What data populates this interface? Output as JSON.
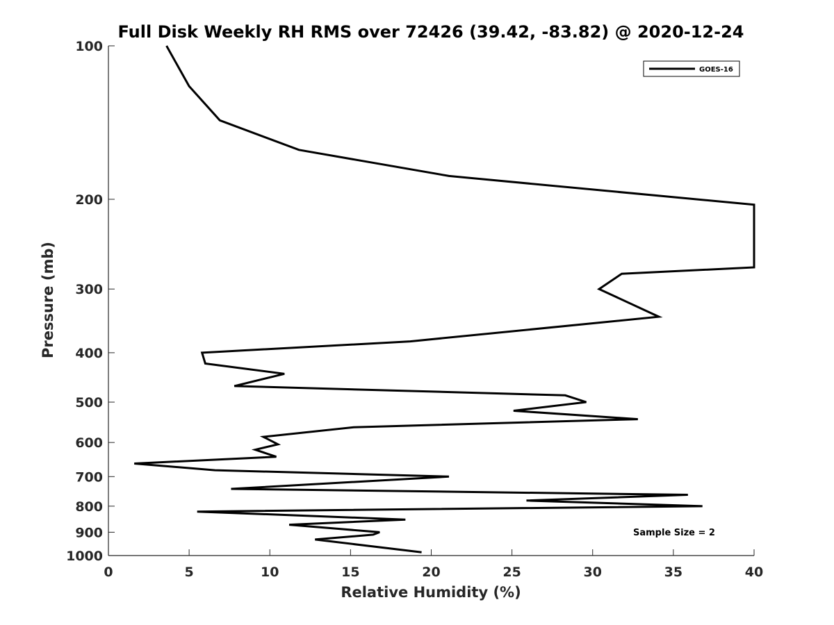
{
  "chart_data": {
    "type": "line",
    "title": "Full Disk Weekly RH RMS over 72426 (39.42, -83.82) @ 2020-12-24",
    "xlabel": "Relative Humidity (%)",
    "ylabel": "Pressure (mb)",
    "xlim": [
      0,
      40
    ],
    "ylim": [
      100,
      1000
    ],
    "y_scale": "log",
    "y_reversed": true,
    "x_ticks": [
      "0",
      "5",
      "10",
      "15",
      "20",
      "25",
      "30",
      "35",
      "40"
    ],
    "y_ticks": [
      "100",
      "200",
      "300",
      "400",
      "500",
      "600",
      "700",
      "800",
      "900",
      "1000"
    ],
    "grid": false,
    "legend_position": "top-right",
    "series": [
      {
        "name": "GOES-16",
        "color": "#000000",
        "points": [
          [
            3.6,
            100
          ],
          [
            5.0,
            120
          ],
          [
            6.9,
            140
          ],
          [
            11.8,
            160
          ],
          [
            21.1,
            180
          ],
          [
            40.0,
            205
          ],
          [
            40.0,
            272
          ],
          [
            31.8,
            280
          ],
          [
            30.4,
            300
          ],
          [
            34.1,
            340
          ],
          [
            18.7,
            380
          ],
          [
            5.8,
            400
          ],
          [
            6.0,
            420
          ],
          [
            10.9,
            440
          ],
          [
            7.8,
            465
          ],
          [
            28.3,
            485
          ],
          [
            29.6,
            500
          ],
          [
            25.1,
            520
          ],
          [
            32.8,
            540
          ],
          [
            15.2,
            560
          ],
          [
            9.6,
            585
          ],
          [
            10.5,
            605
          ],
          [
            9.1,
            620
          ],
          [
            10.4,
            640
          ],
          [
            1.6,
            660
          ],
          [
            6.6,
            680
          ],
          [
            21.1,
            700
          ],
          [
            7.6,
            740
          ],
          [
            35.9,
            760
          ],
          [
            25.9,
            780
          ],
          [
            36.8,
            800
          ],
          [
            5.5,
            820
          ],
          [
            18.4,
            850
          ],
          [
            11.2,
            870
          ],
          [
            16.8,
            900
          ],
          [
            16.4,
            910
          ],
          [
            12.8,
            930
          ],
          [
            19.4,
            985
          ]
        ]
      }
    ],
    "annotations": [
      "Sample Size = 2"
    ]
  }
}
